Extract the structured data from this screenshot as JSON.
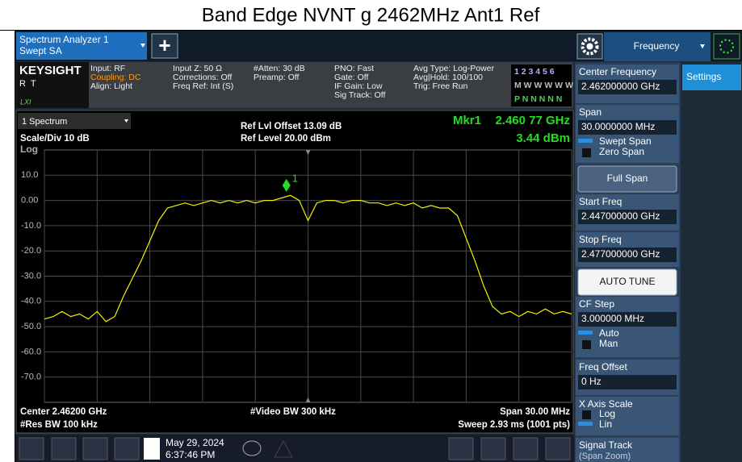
{
  "title": "Band Edge NVNT g 2462MHz Ant1 Ref",
  "toolbar": {
    "tab_line1": "Spectrum Analyzer 1",
    "tab_line2": "Swept SA",
    "add": "+",
    "menu": "Frequency",
    "settings": "Settings"
  },
  "info": {
    "brand": "KEYSIGHT",
    "mode": "R  T",
    "lxi": "LXI",
    "columns": [
      [
        "Input: RF",
        "Coupling: DC",
        "Align: Light"
      ],
      [
        "Input Z: 50 Ω",
        "Corrections: Off",
        "Freq Ref: Int (S)"
      ],
      [
        "#Atten: 30 dB",
        "Preamp: Off"
      ],
      [
        "PNO: Fast",
        "Gate: Off",
        "IF Gain: Low",
        "Sig Track: Off"
      ],
      [
        "Avg Type: Log-Power",
        "Avg|Hold: 100/100",
        "Trig: Free Run"
      ]
    ],
    "trace_rows": [
      "1 2 3 4 5 6",
      "M W W W W W",
      "P N N N N N"
    ]
  },
  "chart_data": {
    "type": "line",
    "panel": "1 Spectrum",
    "scale": "Scale/Div 10 dB",
    "scale_type": "Log",
    "ref_offset": "Ref Lvl Offset 13.09 dB",
    "ref_level": "Ref Level 20.00 dBm",
    "x": [
      2447,
      2447.5,
      2448,
      2448.5,
      2449,
      2449.5,
      2450,
      2450.5,
      2451,
      2451.5,
      2452,
      2452.5,
      2453,
      2453.5,
      2454,
      2454.5,
      2455,
      2455.5,
      2456,
      2456.5,
      2457,
      2457.5,
      2458,
      2458.5,
      2459,
      2459.5,
      2460,
      2460.5,
      2461,
      2461.5,
      2462,
      2462.5,
      2463,
      2463.5,
      2464,
      2464.5,
      2465,
      2465.5,
      2466,
      2466.5,
      2467,
      2467.5,
      2468,
      2468.5,
      2469,
      2469.5,
      2470,
      2470.5,
      2471,
      2471.5,
      2472,
      2472.5,
      2473,
      2473.5,
      2474,
      2474.5,
      2475,
      2475.5,
      2476,
      2476.5,
      2477
    ],
    "series": [
      {
        "color": "#f2f200",
        "values": [
          -47,
          -46,
          -44,
          -46,
          -45,
          -47,
          -44,
          -48,
          -46,
          -38,
          -31,
          -24,
          -16,
          -8,
          -3,
          -2,
          -1,
          -2,
          -1,
          0,
          -1,
          0,
          -1,
          0,
          -1,
          0,
          0,
          1,
          2,
          0,
          -8,
          -1,
          0,
          0,
          -1,
          0,
          0,
          -1,
          -1,
          -2,
          -1,
          -2,
          -1,
          -3,
          -2,
          -3,
          -3,
          -6,
          -15,
          -24,
          -34,
          -42,
          -45,
          -44,
          -46,
          -44,
          -45,
          -43,
          -45,
          -44,
          -45
        ]
      }
    ],
    "xlim": [
      2447,
      2477
    ],
    "xticks": [
      2447,
      2450,
      2453,
      2456,
      2459,
      2462,
      2465,
      2468,
      2471,
      2474,
      2477
    ],
    "ylim": [
      -80,
      20
    ],
    "yticks": [
      {
        "value": 10,
        "label": "10.0"
      },
      {
        "value": 0,
        "label": "0.00"
      },
      {
        "value": -10,
        "label": "-10.0"
      },
      {
        "value": -20,
        "label": "-20.0"
      },
      {
        "value": -30,
        "label": "-30.0"
      },
      {
        "value": -40,
        "label": "-40.0"
      },
      {
        "value": -50,
        "label": "-50.0"
      },
      {
        "value": -60,
        "label": "-60.0"
      },
      {
        "value": -70,
        "label": "-70.0"
      }
    ],
    "grid": true,
    "marker": {
      "id": "1",
      "x": 2460.77,
      "y": 3.44,
      "name": "Mkr1",
      "x_label": "2.460 77 GHz",
      "y_label": "3.44 dBm",
      "color": "#22dd22"
    },
    "footer": {
      "center": "Center 2.46200 GHz",
      "rbw": "#Res BW 100 kHz",
      "vbw": "#Video BW 300 kHz",
      "span": "Span 30.00 MHz",
      "sweep": "Sweep 2.93 ms (1001 pts)"
    }
  },
  "softkeys": [
    {
      "label": "Center Frequency",
      "value": "2.462000000 GHz"
    },
    {
      "label": "Span",
      "value": "30.0000000 MHz",
      "options": [
        {
          "text": "Swept Span",
          "selected": true
        },
        {
          "text": "Zero Span",
          "selected": false
        }
      ]
    },
    {
      "label": "Full Span",
      "button": true
    },
    {
      "label": "Start Freq",
      "value": "2.447000000 GHz"
    },
    {
      "label": "Stop Freq",
      "value": "2.477000000 GHz"
    },
    {
      "label": "AUTO TUNE",
      "button": true
    },
    {
      "label": "CF Step",
      "value": "3.000000 MHz",
      "options": [
        {
          "text": "Auto",
          "selected": true
        },
        {
          "text": "Man",
          "selected": false
        }
      ]
    },
    {
      "label": "Freq Offset",
      "value": "0 Hz"
    },
    {
      "label": "X Axis Scale",
      "options": [
        {
          "text": "Log",
          "selected": false
        },
        {
          "text": "Lin",
          "selected": true
        }
      ]
    },
    {
      "label": "Signal Track",
      "value": "(Span Zoom)"
    }
  ],
  "taskbar": {
    "date": "May 29, 2024",
    "time": "6:37:46 PM"
  }
}
